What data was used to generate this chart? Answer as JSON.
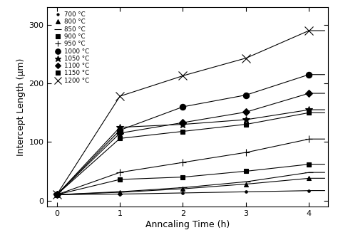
{
  "title": "",
  "xlabel": "Anncaling Time (h)",
  "ylabel": "Intercept Length (μm)",
  "xlim": [
    -0.15,
    4.3
  ],
  "ylim": [
    -10,
    330
  ],
  "xticks": [
    0,
    1,
    2,
    3,
    4
  ],
  "yticks": [
    0,
    100,
    200,
    300
  ],
  "series": [
    {
      "label": "700 °C",
      "marker": ".",
      "ms": 5,
      "x": [
        0,
        1,
        2,
        3,
        4
      ],
      "y": [
        10,
        11,
        13,
        15,
        17
      ]
    },
    {
      "label": "800 °C",
      "marker": "^",
      "ms": 5,
      "x": [
        0,
        1,
        2,
        3,
        4
      ],
      "y": [
        10,
        14,
        20,
        28,
        38
      ]
    },
    {
      "label": "850 °C",
      "marker": "_",
      "ms": 8,
      "x": [
        0,
        1,
        2,
        3,
        4
      ],
      "y": [
        10,
        15,
        22,
        32,
        48
      ]
    },
    {
      "label": "900 °C",
      "marker": "s",
      "ms": 5,
      "x": [
        0,
        1,
        2,
        3,
        4
      ],
      "y": [
        10,
        36,
        40,
        50,
        62
      ]
    },
    {
      "label": "950 °C",
      "marker": "+",
      "ms": 7,
      "x": [
        0,
        1,
        2,
        3,
        4
      ],
      "y": [
        10,
        48,
        65,
        82,
        105
      ]
    },
    {
      "label": "1000 °C",
      "marker": "o",
      "ms": 6,
      "x": [
        0,
        1,
        2,
        3,
        4
      ],
      "y": [
        10,
        120,
        160,
        180,
        215
      ]
    },
    {
      "label": "1050 °C",
      "marker": "*",
      "ms": 7,
      "x": [
        0,
        1,
        2,
        3,
        4
      ],
      "y": [
        10,
        125,
        130,
        138,
        155
      ]
    },
    {
      "label": "1100 °C",
      "marker": "D",
      "ms": 5,
      "x": [
        0,
        1,
        2,
        3,
        4
      ],
      "y": [
        10,
        115,
        133,
        151,
        183
      ]
    },
    {
      "label": "1150 °C",
      "marker": "s",
      "ms": 5,
      "x": [
        0,
        1,
        2,
        3,
        4
      ],
      "y": [
        10,
        106,
        118,
        130,
        150
      ]
    },
    {
      "label": "1200 °C",
      "marker": "x",
      "ms": 8,
      "x": [
        0,
        1,
        2,
        3,
        4
      ],
      "y": [
        10,
        178,
        213,
        243,
        290
      ]
    }
  ],
  "background_color": "#ffffff"
}
